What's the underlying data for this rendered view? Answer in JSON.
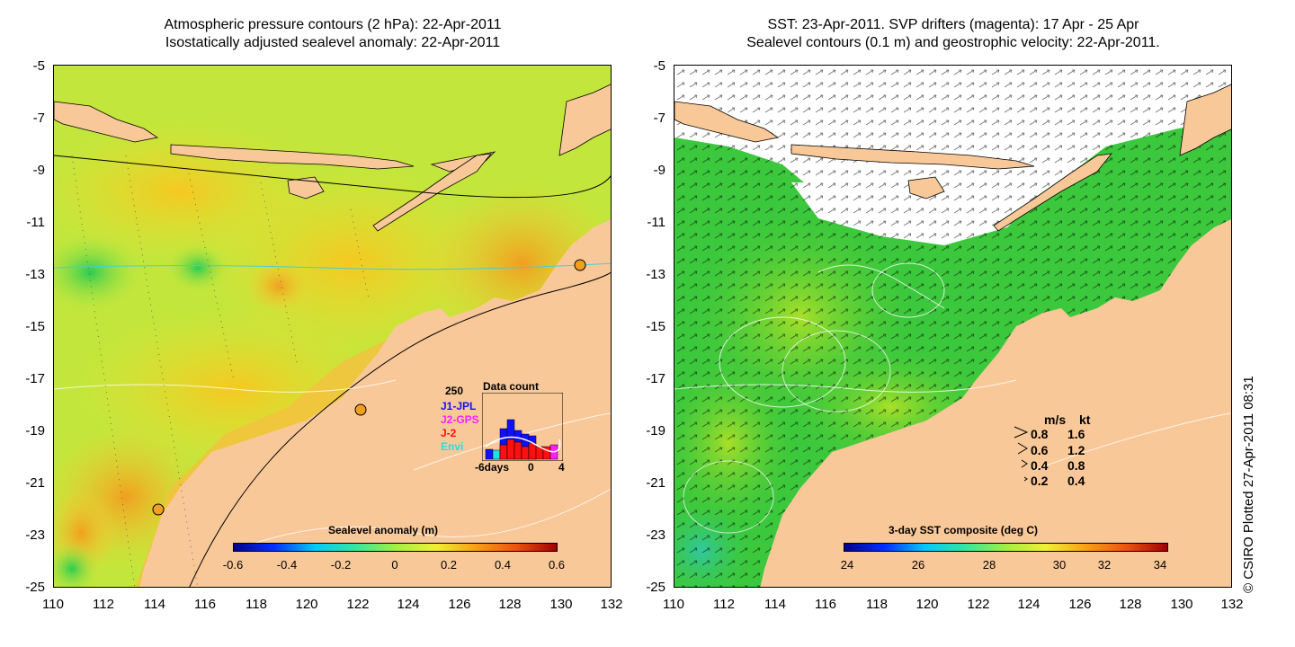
{
  "left": {
    "title_line1": "Atmospheric pressure contours (2 hPa): 22-Apr-2011",
    "title_line2": "Isostatically adjusted sealevel anomaly: 22-Apr-2011",
    "colorbar_label": "Sealevel anomaly (m)",
    "colorbar_ticks": [
      "-0.6",
      "-0.4",
      "-0.2",
      "0",
      "0.2",
      "0.4",
      "0.6"
    ],
    "inset": {
      "max_label": "250",
      "title": "Data count",
      "legend": [
        {
          "label": "J1-JPL",
          "color": "#1010ff"
        },
        {
          "label": "J2-GPS",
          "color": "#ff20ff"
        },
        {
          "label": "J-2",
          "color": "#ff1010"
        },
        {
          "label": "Envi",
          "color": "#20e0e0"
        }
      ],
      "xaxis_left": "-6days",
      "xaxis_mid": "0",
      "xaxis_right": "4"
    }
  },
  "right": {
    "title_line1": "SST: 23-Apr-2011. SVP drifters (magenta): 17 Apr - 25 Apr",
    "title_line2": "Sealevel contours (0.1 m) and geostrophic velocity: 22-Apr-2011.",
    "colorbar_label": "3-day SST composite (deg C)",
    "colorbar_ticks": [
      "24",
      "26",
      "28",
      "30",
      "32",
      "34"
    ],
    "velocity_legend": {
      "header_ms": "m/s",
      "header_kt": "kt",
      "rows": [
        {
          "ms": "0.8",
          "kt": "1.6"
        },
        {
          "ms": "0.6",
          "kt": "1.2"
        },
        {
          "ms": "0.4",
          "kt": "0.8"
        },
        {
          "ms": "0.2",
          "kt": "0.4"
        }
      ]
    }
  },
  "axes": {
    "y_ticks": [
      "-5",
      "-7",
      "-9",
      "-11",
      "-13",
      "-15",
      "-17",
      "-19",
      "-21",
      "-23",
      "-25"
    ],
    "x_ticks": [
      "110",
      "112",
      "114",
      "116",
      "118",
      "120",
      "122",
      "124",
      "126",
      "128",
      "130",
      "132"
    ]
  },
  "credit": "© CSIRO Plotted 27-Apr-2011 08:31",
  "colors": {
    "land": "#f9c898",
    "sla_base": "#b8e640",
    "sst_base": "#3cc83c"
  }
}
